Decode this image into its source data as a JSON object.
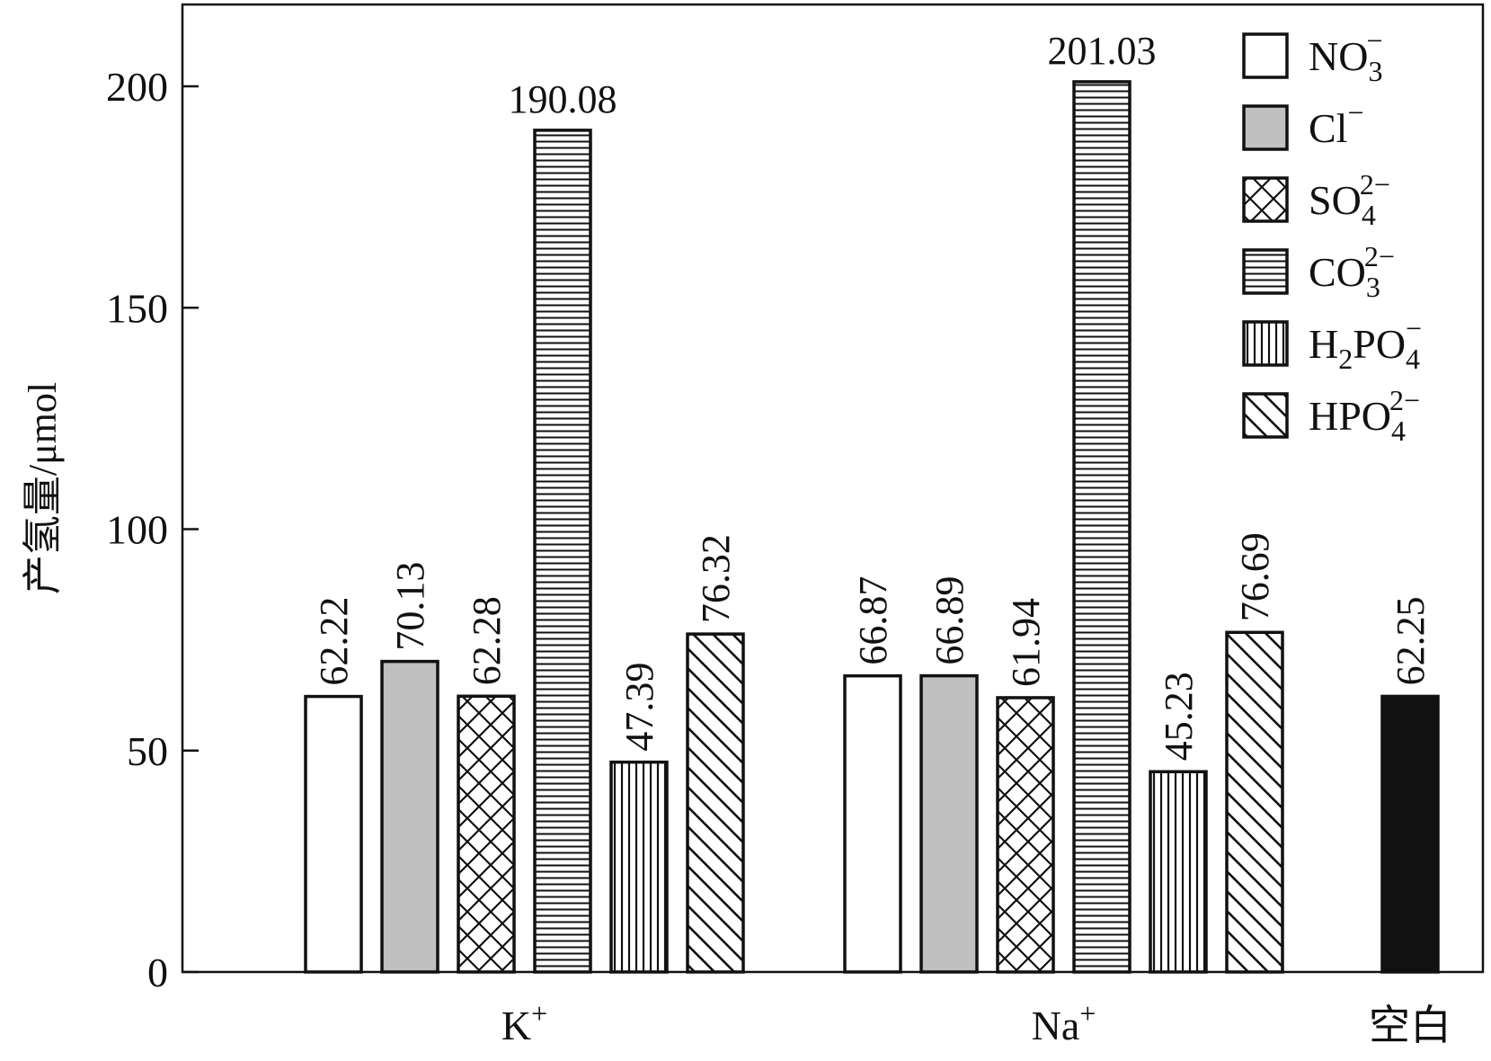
{
  "chart_data": {
    "type": "bar",
    "title": "",
    "xlabel": "",
    "ylabel": "产氢量/μmol",
    "ylim": [
      0,
      216
    ],
    "yticks": [
      0,
      50,
      100,
      150,
      200
    ],
    "grid": false,
    "legend_position": "top-right",
    "groups": [
      {
        "label": "K",
        "label_sup": "+",
        "bars": [
          {
            "series": 0,
            "value": 62.22,
            "label": "62.22"
          },
          {
            "series": 1,
            "value": 70.13,
            "label": "70.13"
          },
          {
            "series": 2,
            "value": 62.28,
            "label": "62.28"
          },
          {
            "series": 3,
            "value": 190.08,
            "label": "190.08"
          },
          {
            "series": 4,
            "value": 47.39,
            "label": "47.39"
          },
          {
            "series": 5,
            "value": 76.32,
            "label": "76.32"
          }
        ]
      },
      {
        "label": "Na",
        "label_sup": "+",
        "bars": [
          {
            "series": 0,
            "value": 66.87,
            "label": "66.87"
          },
          {
            "series": 1,
            "value": 66.89,
            "label": "66.89"
          },
          {
            "series": 2,
            "value": 61.94,
            "label": "61.94"
          },
          {
            "series": 3,
            "value": 201.03,
            "label": "201.03"
          },
          {
            "series": 4,
            "value": 45.23,
            "label": "45.23"
          },
          {
            "series": 5,
            "value": 76.69,
            "label": "76.69"
          }
        ]
      },
      {
        "label": "空白",
        "label_sup": "",
        "bars": [
          {
            "series": 6,
            "value": 62.25,
            "label": "62.25"
          }
        ]
      }
    ],
    "series": [
      {
        "name": "NO3−",
        "base": "NO",
        "sub": "3",
        "sup": "−",
        "pattern": "white",
        "in_legend": true
      },
      {
        "name": "Cl−",
        "base": "Cl",
        "sub": "",
        "sup": "−",
        "pattern": "gray",
        "in_legend": true
      },
      {
        "name": "SO4 2−",
        "base": "SO",
        "sub": "4",
        "sup": "2−",
        "pattern": "crosshatch",
        "in_legend": true
      },
      {
        "name": "CO3 2−",
        "base": "CO",
        "sub": "3",
        "sup": "2−",
        "pattern": "horizontal-lines",
        "in_legend": true
      },
      {
        "name": "H2PO4−",
        "base": "H",
        "sub": "2",
        "mid": "PO",
        "sub2": "4",
        "sup": "−",
        "pattern": "vertical-lines",
        "in_legend": true
      },
      {
        "name": "HPO4 2−",
        "base": "HPO",
        "sub": "4",
        "sup": "2−",
        "pattern": "diagonal",
        "in_legend": true
      },
      {
        "name": "",
        "pattern": "black",
        "in_legend": false
      }
    ],
    "colors": {
      "gray_fill": "#c0c0c0",
      "black_fill": "#111111",
      "stroke": "#111111"
    }
  }
}
